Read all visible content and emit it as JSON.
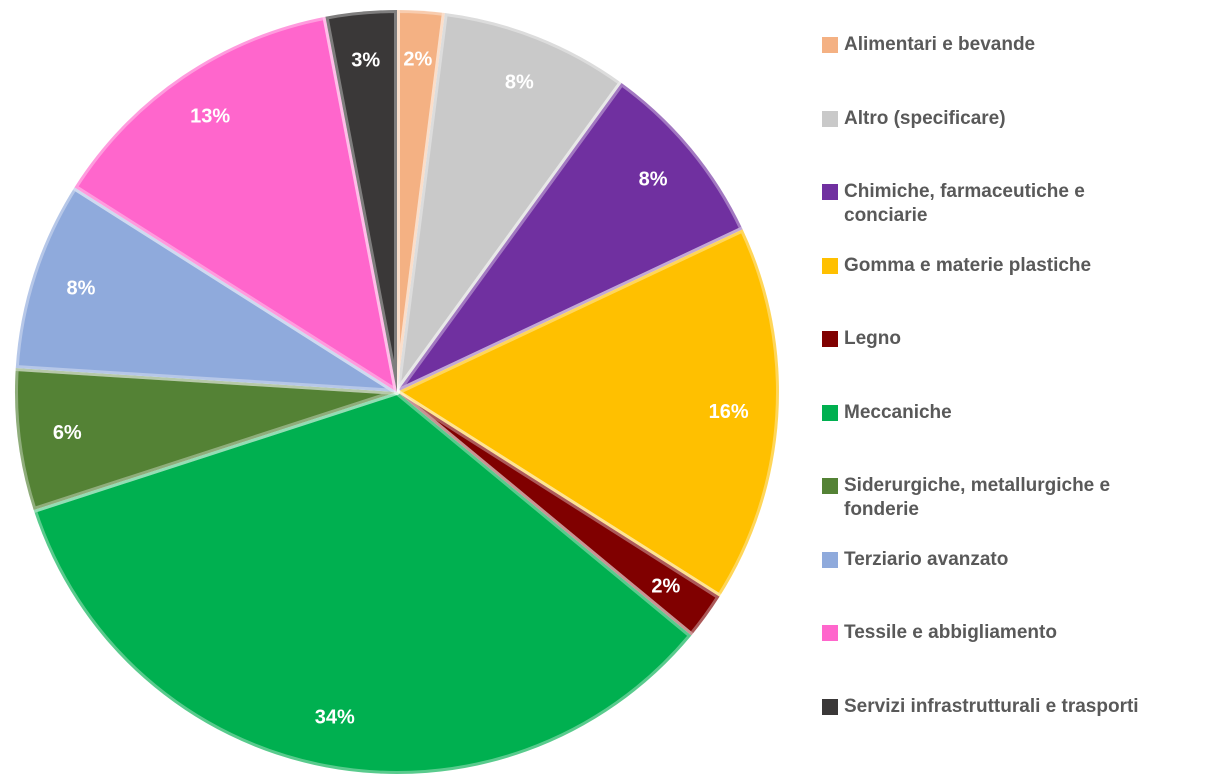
{
  "chart_data": {
    "type": "pie",
    "categories": [
      "Alimentari e bevande",
      "Altro (specificare)",
      "Chimiche, farmaceutiche e conciarie",
      "Gomma e materie plastiche",
      "Legno",
      "Meccaniche",
      "Siderurgiche, metallurgiche e fonderie",
      "Terziario avanzato",
      "Tessile e abbigliamento",
      "Servizi infrastrutturali e trasporti"
    ],
    "values": [
      2,
      8,
      8,
      16,
      2,
      34,
      6,
      8,
      13,
      3
    ],
    "value_labels": [
      "2%",
      "8%",
      "8%",
      "16%",
      "2%",
      "34%",
      "6%",
      "8%",
      "13%",
      "3%"
    ],
    "colors": [
      "#f4b183",
      "#c9c9c9",
      "#7030a0",
      "#ffc000",
      "#800000",
      "#00b050",
      "#548235",
      "#8faadc",
      "#ff66cc",
      "#3a3838"
    ],
    "legend": "right"
  }
}
